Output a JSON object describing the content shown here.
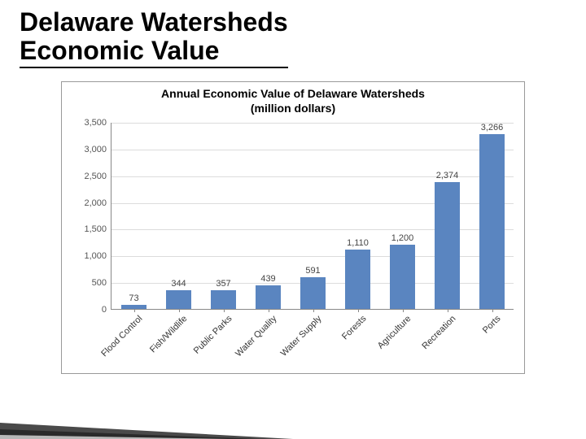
{
  "slide": {
    "title_line1": "Delaware Watersheds",
    "title_line2": "Economic Value",
    "title_color": "#000000",
    "title_fontsize": 32
  },
  "chart": {
    "type": "bar",
    "title_line1": "Annual Economic Value of Delaware Watersheds",
    "title_line2": "(million dollars)",
    "title_fontsize": 14,
    "background_color": "#ffffff",
    "border_color": "#999999",
    "grid_color": "#dcdcdc",
    "axis_color": "#888888",
    "tick_label_color": "#555555",
    "x_label_color": "#333333",
    "bar_label_color": "#444444",
    "bar_color": "#5a85c0",
    "bar_width": 0.55,
    "x_label_rotation_deg": -45,
    "label_fontsize": 11,
    "ylim": [
      0,
      3500
    ],
    "ytick_step": 500,
    "y_ticks": [
      {
        "v": 0,
        "label": "0"
      },
      {
        "v": 500,
        "label": "500"
      },
      {
        "v": 1000,
        "label": "1,000"
      },
      {
        "v": 1500,
        "label": "1,500"
      },
      {
        "v": 2000,
        "label": "2,000"
      },
      {
        "v": 2500,
        "label": "2,500"
      },
      {
        "v": 3000,
        "label": "3,000"
      },
      {
        "v": 3500,
        "label": "3,500"
      }
    ],
    "categories": [
      {
        "label": "Flood Control",
        "value": 73,
        "value_label": "73"
      },
      {
        "label": "Fish/Wildlife",
        "value": 344,
        "value_label": "344"
      },
      {
        "label": "Public Parks",
        "value": 357,
        "value_label": "357"
      },
      {
        "label": "Water Quality",
        "value": 439,
        "value_label": "439"
      },
      {
        "label": "Water Supply",
        "value": 591,
        "value_label": "591"
      },
      {
        "label": "Forests",
        "value": 1110,
        "value_label": "1,110"
      },
      {
        "label": "Agriculture",
        "value": 1200,
        "value_label": "1,200"
      },
      {
        "label": "Recreation",
        "value": 2374,
        "value_label": "2,374"
      },
      {
        "label": "Ports",
        "value": 3266,
        "value_label": "3,266"
      }
    ]
  },
  "decor": {
    "colors": [
      "#4a4a4a",
      "#2a2a2a",
      "#b8b8b8"
    ]
  }
}
